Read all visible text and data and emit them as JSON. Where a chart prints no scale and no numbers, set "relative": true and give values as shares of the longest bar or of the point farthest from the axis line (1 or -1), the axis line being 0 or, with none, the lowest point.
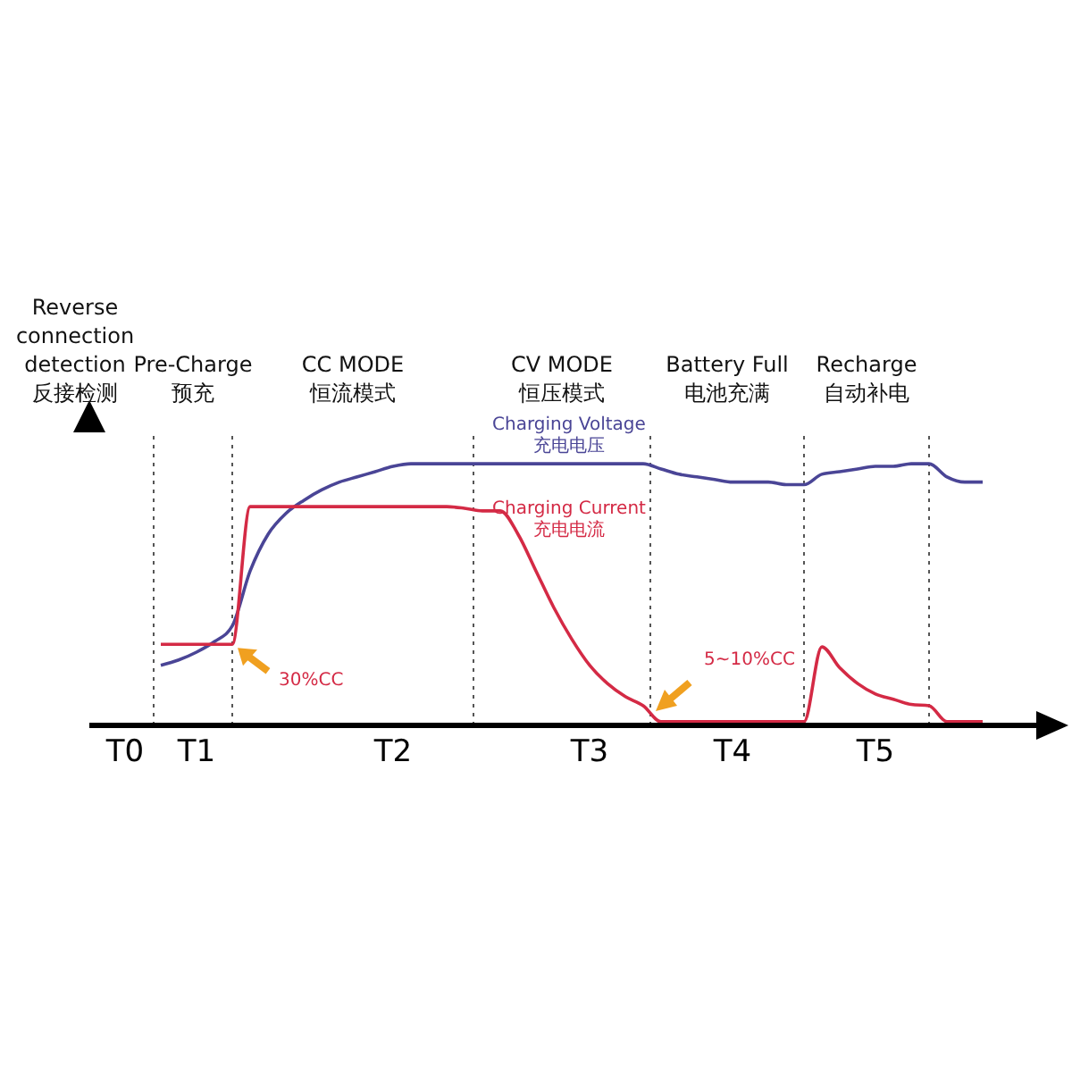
{
  "chart_data": {
    "type": "line",
    "relative": true,
    "categories": [
      null,
      null,
      "T0",
      null,
      null,
      null,
      "T1",
      null,
      null,
      null,
      null,
      null,
      null,
      null,
      null,
      null,
      null,
      "T2",
      null,
      null,
      null,
      null,
      null,
      null,
      null,
      null,
      null,
      null,
      "T3",
      null,
      null,
      null,
      null,
      null,
      null,
      null,
      "T4",
      null,
      null,
      null,
      null,
      null,
      null,
      null,
      "T5",
      null,
      null,
      null,
      null,
      null,
      null,
      null,
      null
    ],
    "series": [
      {
        "name": "Charging Voltage\n充电电压",
        "color": "#4a4596",
        "values": [
          null,
          null,
          null,
          null,
          0.23,
          0.25,
          0.28,
          0.32,
          0.38,
          0.59,
          0.73,
          0.81,
          0.86,
          0.9,
          0.93,
          0.95,
          0.97,
          0.99,
          1,
          1,
          1,
          1,
          1,
          1,
          1,
          1,
          1,
          1,
          1,
          1,
          1,
          1,
          0.98,
          0.96,
          0.95,
          0.94,
          0.93,
          0.93,
          0.93,
          0.92,
          0.92,
          0.96,
          0.97,
          0.98,
          0.99,
          0.99,
          1,
          1,
          0.95,
          0.93,
          0.93,
          null,
          null
        ]
      },
      {
        "name": "Charging Current\n充电电流",
        "color": "#d42a45",
        "values": [
          null,
          null,
          null,
          null,
          0.31,
          0.31,
          0.31,
          0.31,
          0.31,
          0.836,
          0.836,
          0.836,
          0.836,
          0.836,
          0.836,
          0.836,
          0.836,
          0.836,
          0.836,
          0.836,
          0.836,
          0.83,
          0.82,
          0.82,
          0.73,
          0.59,
          0.45,
          0.33,
          0.23,
          0.16,
          0.11,
          0.075,
          0.014,
          0.014,
          0.014,
          0.014,
          0.014,
          0.014,
          0.014,
          0.014,
          0.014,
          0.3,
          0.22,
          0.16,
          0.12,
          0.1,
          0.08,
          0.075,
          0.014,
          0.014,
          0.014,
          null,
          null
        ]
      }
    ],
    "annotations": [
      "Reverse\nconnection\ndetection\n反接检测",
      "Pre-Charge\n预充",
      "CC MODE\n恒流模式",
      "CV MODE\n恒压模式",
      "Battery Full\n电池充满",
      "Recharge\n自动补电",
      "30%CC",
      "5~10%CC"
    ],
    "grid": false,
    "legend": false,
    "marker": "none",
    "line_style": "solid"
  }
}
